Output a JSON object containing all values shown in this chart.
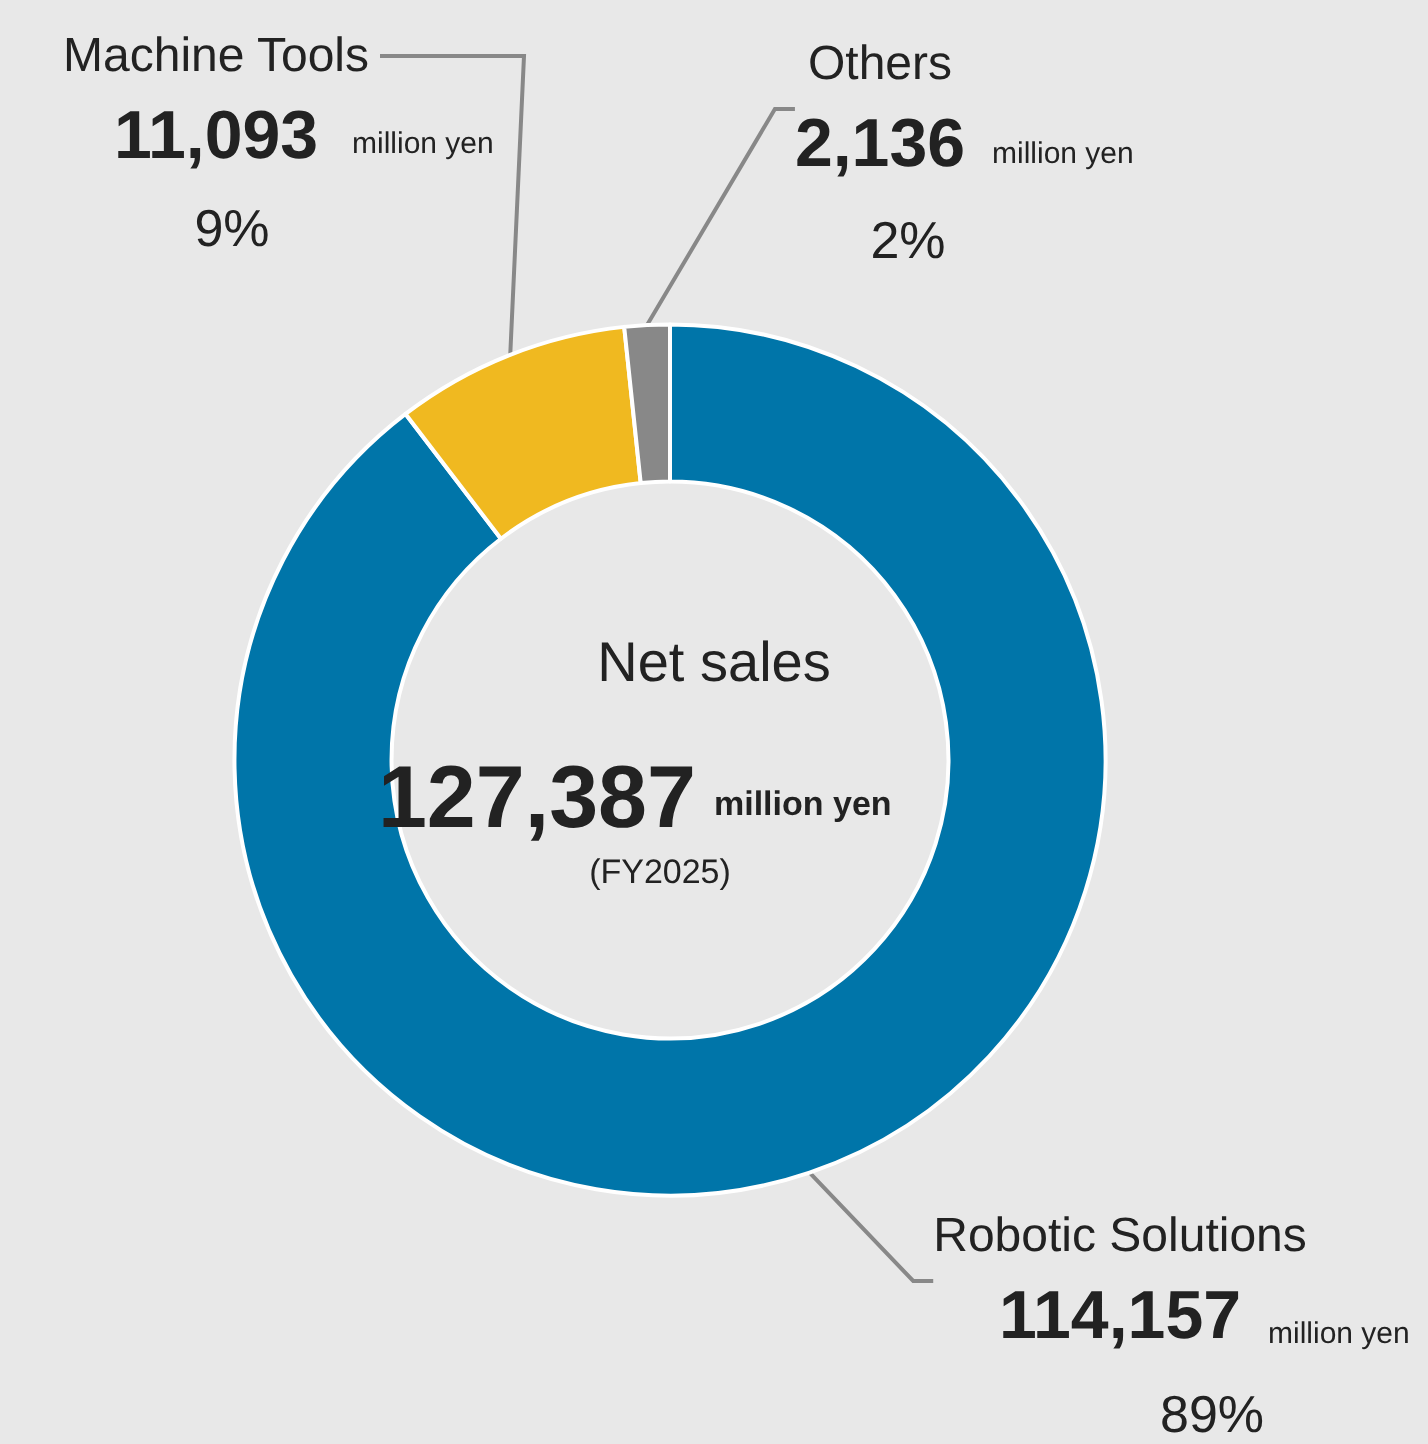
{
  "chart_data": {
    "type": "donut",
    "title": "Net sales",
    "subtitle": "127,387",
    "annotations": [
      "million yen",
      "(FY2025)",
      "million yen",
      "89%",
      "million yen",
      "9%",
      "million yen",
      "2%"
    ],
    "categories": [
      "Robotic Solutions",
      "Machine Tools",
      "Others"
    ],
    "values": [
      114157,
      11093,
      2136
    ],
    "value_labels": [
      "114,157",
      "11,093",
      "2,136"
    ],
    "colors": [
      "#0075a9",
      "#f0b920",
      "#888888"
    ],
    "legend": false
  }
}
